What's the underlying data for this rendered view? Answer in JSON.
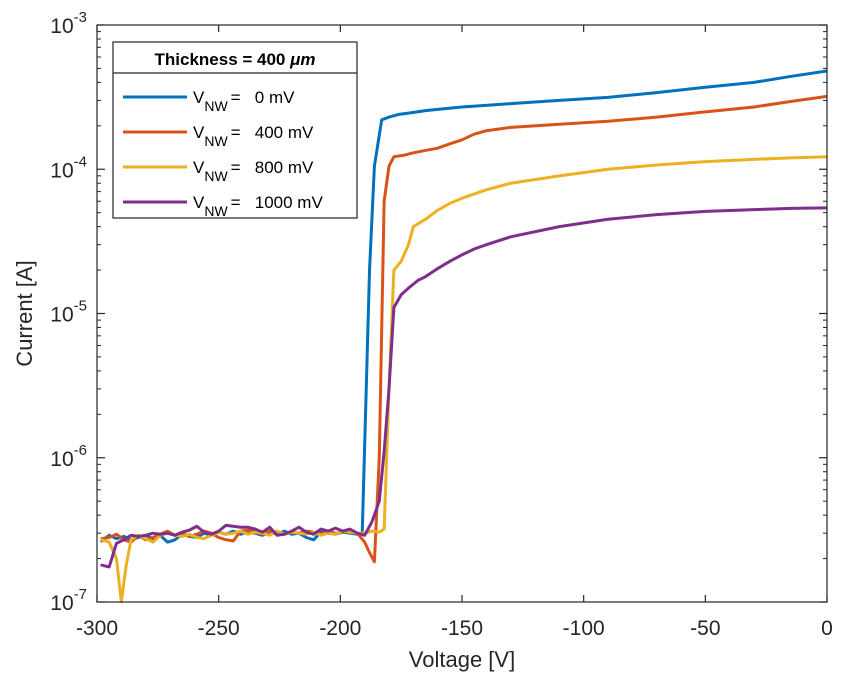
{
  "chart_data": {
    "type": "line",
    "title": "",
    "xlabel": "Voltage [V]",
    "ylabel": "Current [A]",
    "x_scale": "linear",
    "y_scale": "log",
    "xlim": [
      -300,
      0
    ],
    "ylim": [
      1e-07,
      0.001
    ],
    "x_ticks": [
      -300,
      -250,
      -200,
      -150,
      -100,
      -50,
      0
    ],
    "x_tick_labels": [
      "-300",
      "-250",
      "-200",
      "-150",
      "-100",
      "-50",
      "0"
    ],
    "y_ticks": [
      {
        "value": 1e-07,
        "base": "10",
        "exp": "-7"
      },
      {
        "value": 1e-06,
        "base": "10",
        "exp": "-6"
      },
      {
        "value": 1e-05,
        "base": "10",
        "exp": "-5"
      },
      {
        "value": 0.0001,
        "base": "10",
        "exp": "-4"
      },
      {
        "value": 0.001,
        "base": "10",
        "exp": "-3"
      }
    ],
    "grid": false,
    "legend": {
      "placement": "top-left",
      "title_prefix": "Thickness = 400 ",
      "title_unit": "μm",
      "entries": [
        {
          "var": "V",
          "sub": "NW",
          "value": "=   0 mV"
        },
        {
          "var": "V",
          "sub": "NW",
          "value": "=   400 mV"
        },
        {
          "var": "V",
          "sub": "NW",
          "value": "=   800 mV"
        },
        {
          "var": "V",
          "sub": "NW",
          "value": "=   1000 mV"
        }
      ]
    },
    "series": [
      {
        "color": "#0072BD",
        "points": [
          [
            -298,
            2.65e-07
          ],
          [
            -295,
            2.9e-07
          ],
          [
            -292,
            2.75e-07
          ],
          [
            -289,
            2.85e-07
          ],
          [
            -286,
            2.7e-07
          ],
          [
            -283,
            2.8e-07
          ],
          [
            -280,
            2.9e-07
          ],
          [
            -277,
            2.75e-07
          ],
          [
            -274,
            2.9e-07
          ],
          [
            -271,
            2.6e-07
          ],
          [
            -268,
            2.7e-07
          ],
          [
            -265,
            2.95e-07
          ],
          [
            -262,
            2.85e-07
          ],
          [
            -259,
            2.8e-07
          ],
          [
            -256,
            3e-07
          ],
          [
            -253,
            2.9e-07
          ],
          [
            -250,
            3.05e-07
          ],
          [
            -247,
            2.95e-07
          ],
          [
            -244,
            3.1e-07
          ],
          [
            -241,
            2.95e-07
          ],
          [
            -238,
            3.05e-07
          ],
          [
            -235,
            3e-07
          ],
          [
            -232,
            2.9e-07
          ],
          [
            -229,
            3.05e-07
          ],
          [
            -226,
            2.95e-07
          ],
          [
            -223,
            3.1e-07
          ],
          [
            -220,
            2.95e-07
          ],
          [
            -217,
            3e-07
          ],
          [
            -214,
            2.8e-07
          ],
          [
            -211,
            2.7e-07
          ],
          [
            -208,
            3.05e-07
          ],
          [
            -205,
            3e-07
          ],
          [
            -202,
            2.95e-07
          ],
          [
            -199,
            3.05e-07
          ],
          [
            -196,
            3e-07
          ],
          [
            -193,
            2.95e-07
          ],
          [
            -191,
            3e-07
          ],
          [
            -188,
            2e-05
          ],
          [
            -186,
            0.000105
          ],
          [
            -183,
            0.00022
          ],
          [
            -180,
            0.00023
          ],
          [
            -176,
            0.00024
          ],
          [
            -172,
            0.000245
          ],
          [
            -165,
            0.000255
          ],
          [
            -160,
            0.00026
          ],
          [
            -150,
            0.00027
          ],
          [
            -130,
            0.000285
          ],
          [
            -110,
            0.0003
          ],
          [
            -90,
            0.000315
          ],
          [
            -70,
            0.00034
          ],
          [
            -50,
            0.00037
          ],
          [
            -30,
            0.0004
          ],
          [
            -15,
            0.00044
          ],
          [
            0,
            0.00048
          ]
        ]
      },
      {
        "color": "#D95319",
        "points": [
          [
            -298,
            2.75e-07
          ],
          [
            -295,
            2.8e-07
          ],
          [
            -292,
            2.95e-07
          ],
          [
            -289,
            2.7e-07
          ],
          [
            -286,
            2.6e-07
          ],
          [
            -283,
            2.9e-07
          ],
          [
            -280,
            2.7e-07
          ],
          [
            -277,
            2.8e-07
          ],
          [
            -274,
            2.95e-07
          ],
          [
            -271,
            3.1e-07
          ],
          [
            -268,
            2.9e-07
          ],
          [
            -265,
            3e-07
          ],
          [
            -262,
            2.85e-07
          ],
          [
            -259,
            2.95e-07
          ],
          [
            -256,
            3.1e-07
          ],
          [
            -253,
            3e-07
          ],
          [
            -250,
            2.8e-07
          ],
          [
            -247,
            2.7e-07
          ],
          [
            -244,
            2.65e-07
          ],
          [
            -241,
            3.1e-07
          ],
          [
            -238,
            3.15e-07
          ],
          [
            -235,
            3.05e-07
          ],
          [
            -232,
            2.95e-07
          ],
          [
            -229,
            3.1e-07
          ],
          [
            -226,
            3e-07
          ],
          [
            -223,
            2.95e-07
          ],
          [
            -220,
            3.05e-07
          ],
          [
            -217,
            3e-07
          ],
          [
            -214,
            3.1e-07
          ],
          [
            -211,
            3.05e-07
          ],
          [
            -208,
            2.95e-07
          ],
          [
            -205,
            3.1e-07
          ],
          [
            -202,
            3e-07
          ],
          [
            -199,
            3.05e-07
          ],
          [
            -196,
            3.15e-07
          ],
          [
            -193,
            3e-07
          ],
          [
            -190,
            2.6e-07
          ],
          [
            -188,
            2.2e-07
          ],
          [
            -186,
            1.9e-07
          ],
          [
            -184,
            1e-06
          ],
          [
            -182,
            6e-05
          ],
          [
            -180,
            0.000105
          ],
          [
            -178,
            0.000122
          ],
          [
            -174,
            0.000125
          ],
          [
            -170,
            0.00013
          ],
          [
            -165,
            0.000135
          ],
          [
            -160,
            0.00014
          ],
          [
            -155,
            0.00015
          ],
          [
            -150,
            0.00016
          ],
          [
            -145,
            0.000175
          ],
          [
            -140,
            0.000185
          ],
          [
            -130,
            0.000195
          ],
          [
            -110,
            0.000205
          ],
          [
            -90,
            0.000215
          ],
          [
            -70,
            0.00023
          ],
          [
            -50,
            0.00025
          ],
          [
            -30,
            0.00027
          ],
          [
            -15,
            0.000295
          ],
          [
            0,
            0.00032
          ]
        ]
      },
      {
        "color": "#EDB120",
        "points": [
          [
            -298,
            2.7e-07
          ],
          [
            -295,
            2.6e-07
          ],
          [
            -292,
            2e-07
          ],
          [
            -290,
            1e-07
          ],
          [
            -288,
            1.8e-07
          ],
          [
            -286,
            2.7e-07
          ],
          [
            -283,
            2.9e-07
          ],
          [
            -280,
            2.75e-07
          ],
          [
            -277,
            2.6e-07
          ],
          [
            -274,
            2.9e-07
          ],
          [
            -271,
            3e-07
          ],
          [
            -268,
            2.9e-07
          ],
          [
            -265,
            2.85e-07
          ],
          [
            -262,
            2.95e-07
          ],
          [
            -259,
            2.8e-07
          ],
          [
            -256,
            2.75e-07
          ],
          [
            -253,
            2.9e-07
          ],
          [
            -250,
            3.05e-07
          ],
          [
            -247,
            2.95e-07
          ],
          [
            -244,
            3e-07
          ],
          [
            -241,
            3.1e-07
          ],
          [
            -238,
            2.95e-07
          ],
          [
            -235,
            3.05e-07
          ],
          [
            -232,
            3e-07
          ],
          [
            -229,
            2.9e-07
          ],
          [
            -226,
            3.1e-07
          ],
          [
            -223,
            2.95e-07
          ],
          [
            -220,
            3.05e-07
          ],
          [
            -217,
            3e-07
          ],
          [
            -214,
            2.95e-07
          ],
          [
            -211,
            3.05e-07
          ],
          [
            -208,
            2.9e-07
          ],
          [
            -205,
            3e-07
          ],
          [
            -202,
            2.95e-07
          ],
          [
            -199,
            3.1e-07
          ],
          [
            -196,
            3.05e-07
          ],
          [
            -193,
            3e-07
          ],
          [
            -190,
            3e-07
          ],
          [
            -187,
            3.1e-07
          ],
          [
            -184,
            3.05e-07
          ],
          [
            -182,
            3.2e-07
          ],
          [
            -180,
            3e-06
          ],
          [
            -178,
            2e-05
          ],
          [
            -175,
            2.3e-05
          ],
          [
            -172,
            3e-05
          ],
          [
            -170,
            4e-05
          ],
          [
            -165,
            4.5e-05
          ],
          [
            -160,
            5.2e-05
          ],
          [
            -155,
            5.8e-05
          ],
          [
            -150,
            6.3e-05
          ],
          [
            -140,
            7.2e-05
          ],
          [
            -130,
            8e-05
          ],
          [
            -110,
            9e-05
          ],
          [
            -90,
            0.0001
          ],
          [
            -70,
            0.000107
          ],
          [
            -50,
            0.000113
          ],
          [
            -30,
            0.000117
          ],
          [
            -15,
            0.00012
          ],
          [
            0,
            0.000122
          ]
        ]
      },
      {
        "color": "#7E2F8E",
        "points": [
          [
            -298,
            1.8e-07
          ],
          [
            -295,
            1.75e-07
          ],
          [
            -292,
            2.55e-07
          ],
          [
            -289,
            2.7e-07
          ],
          [
            -286,
            2.9e-07
          ],
          [
            -283,
            2.85e-07
          ],
          [
            -280,
            2.9e-07
          ],
          [
            -277,
            3e-07
          ],
          [
            -274,
            2.95e-07
          ],
          [
            -271,
            3e-07
          ],
          [
            -268,
            2.9e-07
          ],
          [
            -265,
            3.05e-07
          ],
          [
            -262,
            3.15e-07
          ],
          [
            -259,
            3.35e-07
          ],
          [
            -256,
            3.05e-07
          ],
          [
            -253,
            2.95e-07
          ],
          [
            -250,
            3.1e-07
          ],
          [
            -247,
            3.4e-07
          ],
          [
            -244,
            3.35e-07
          ],
          [
            -241,
            3.3e-07
          ],
          [
            -238,
            3.3e-07
          ],
          [
            -235,
            3.2e-07
          ],
          [
            -232,
            3.05e-07
          ],
          [
            -229,
            3.3e-07
          ],
          [
            -226,
            2.9e-07
          ],
          [
            -223,
            2.95e-07
          ],
          [
            -220,
            3.1e-07
          ],
          [
            -217,
            3.3e-07
          ],
          [
            -214,
            3.05e-07
          ],
          [
            -211,
            2.95e-07
          ],
          [
            -208,
            3.2e-07
          ],
          [
            -205,
            3.1e-07
          ],
          [
            -202,
            3.25e-07
          ],
          [
            -199,
            3.1e-07
          ],
          [
            -196,
            3.2e-07
          ],
          [
            -193,
            3e-07
          ],
          [
            -190,
            2.9e-07
          ],
          [
            -187,
            3.6e-07
          ],
          [
            -184,
            5e-07
          ],
          [
            -182,
            1.1e-06
          ],
          [
            -180,
            3e-06
          ],
          [
            -178,
            1.1e-05
          ],
          [
            -175,
            1.35e-05
          ],
          [
            -172,
            1.5e-05
          ],
          [
            -168,
            1.7e-05
          ],
          [
            -165,
            1.8e-05
          ],
          [
            -160,
            2.05e-05
          ],
          [
            -155,
            2.3e-05
          ],
          [
            -150,
            2.55e-05
          ],
          [
            -145,
            2.8e-05
          ],
          [
            -140,
            3e-05
          ],
          [
            -130,
            3.4e-05
          ],
          [
            -110,
            4e-05
          ],
          [
            -90,
            4.5e-05
          ],
          [
            -70,
            4.85e-05
          ],
          [
            -50,
            5.1e-05
          ],
          [
            -30,
            5.25e-05
          ],
          [
            -15,
            5.35e-05
          ],
          [
            0,
            5.4e-05
          ]
        ]
      }
    ]
  }
}
